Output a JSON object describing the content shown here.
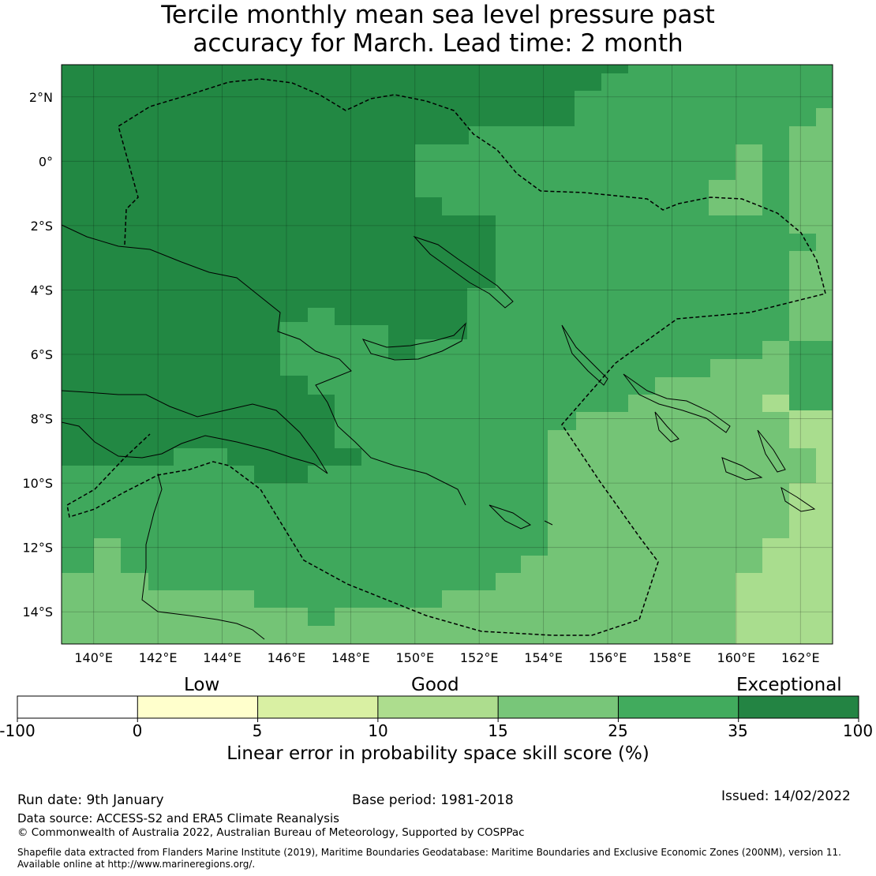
{
  "title": {
    "line1": "Tercile monthly mean sea level pressure past",
    "line2": "accuracy for March. Lead time: 2 month"
  },
  "map": {
    "lon_range": [
      139,
      163
    ],
    "lat_range": [
      -15,
      3
    ],
    "lon_ticks": [
      "140°E",
      "142°E",
      "144°E",
      "146°E",
      "148°E",
      "150°E",
      "152°E",
      "154°E",
      "156°E",
      "158°E",
      "160°E",
      "162°E"
    ],
    "lat_ticks": [
      "2°N",
      "0°",
      "2°S",
      "4°S",
      "6°S",
      "8°S",
      "10°S",
      "12°S",
      "14°S"
    ],
    "category_colors": [
      "#228843",
      "#3fa85c",
      "#74c476",
      "#a9dd8e"
    ]
  },
  "colorbar": {
    "category_labels": [
      "Low",
      "Good",
      "Exceptional"
    ],
    "ticks": [
      "-100",
      "0",
      "5",
      "10",
      "15",
      "25",
      "35",
      "100"
    ],
    "colors": [
      "#ffffff",
      "#ffffcc",
      "#d9f0a3",
      "#addd8e",
      "#78c679",
      "#41ab5d",
      "#238443"
    ],
    "xlabel": "Linear error in probability space skill score (%)"
  },
  "footer": {
    "run_date": "Run date: 9th January",
    "base_period": "Base period: 1981-2018",
    "issued": "Issued: 14/02/2022",
    "data_source": "Data source: ACCESS-S2 and ERA5 Climate Reanalysis",
    "copyright": "© Commonwealth of Australia 2022, Australian Bureau of Meteorology, Supported by COSPPac",
    "shapefile1": "Shapefile data extracted from Flanders Marine Institute (2019), Maritime Boundaries Geodatabase: Maritime Boundaries and Exclusive Economic Zones (200NM), version 11.",
    "shapefile2": "Available online at http://www.marineregions.org/."
  }
}
